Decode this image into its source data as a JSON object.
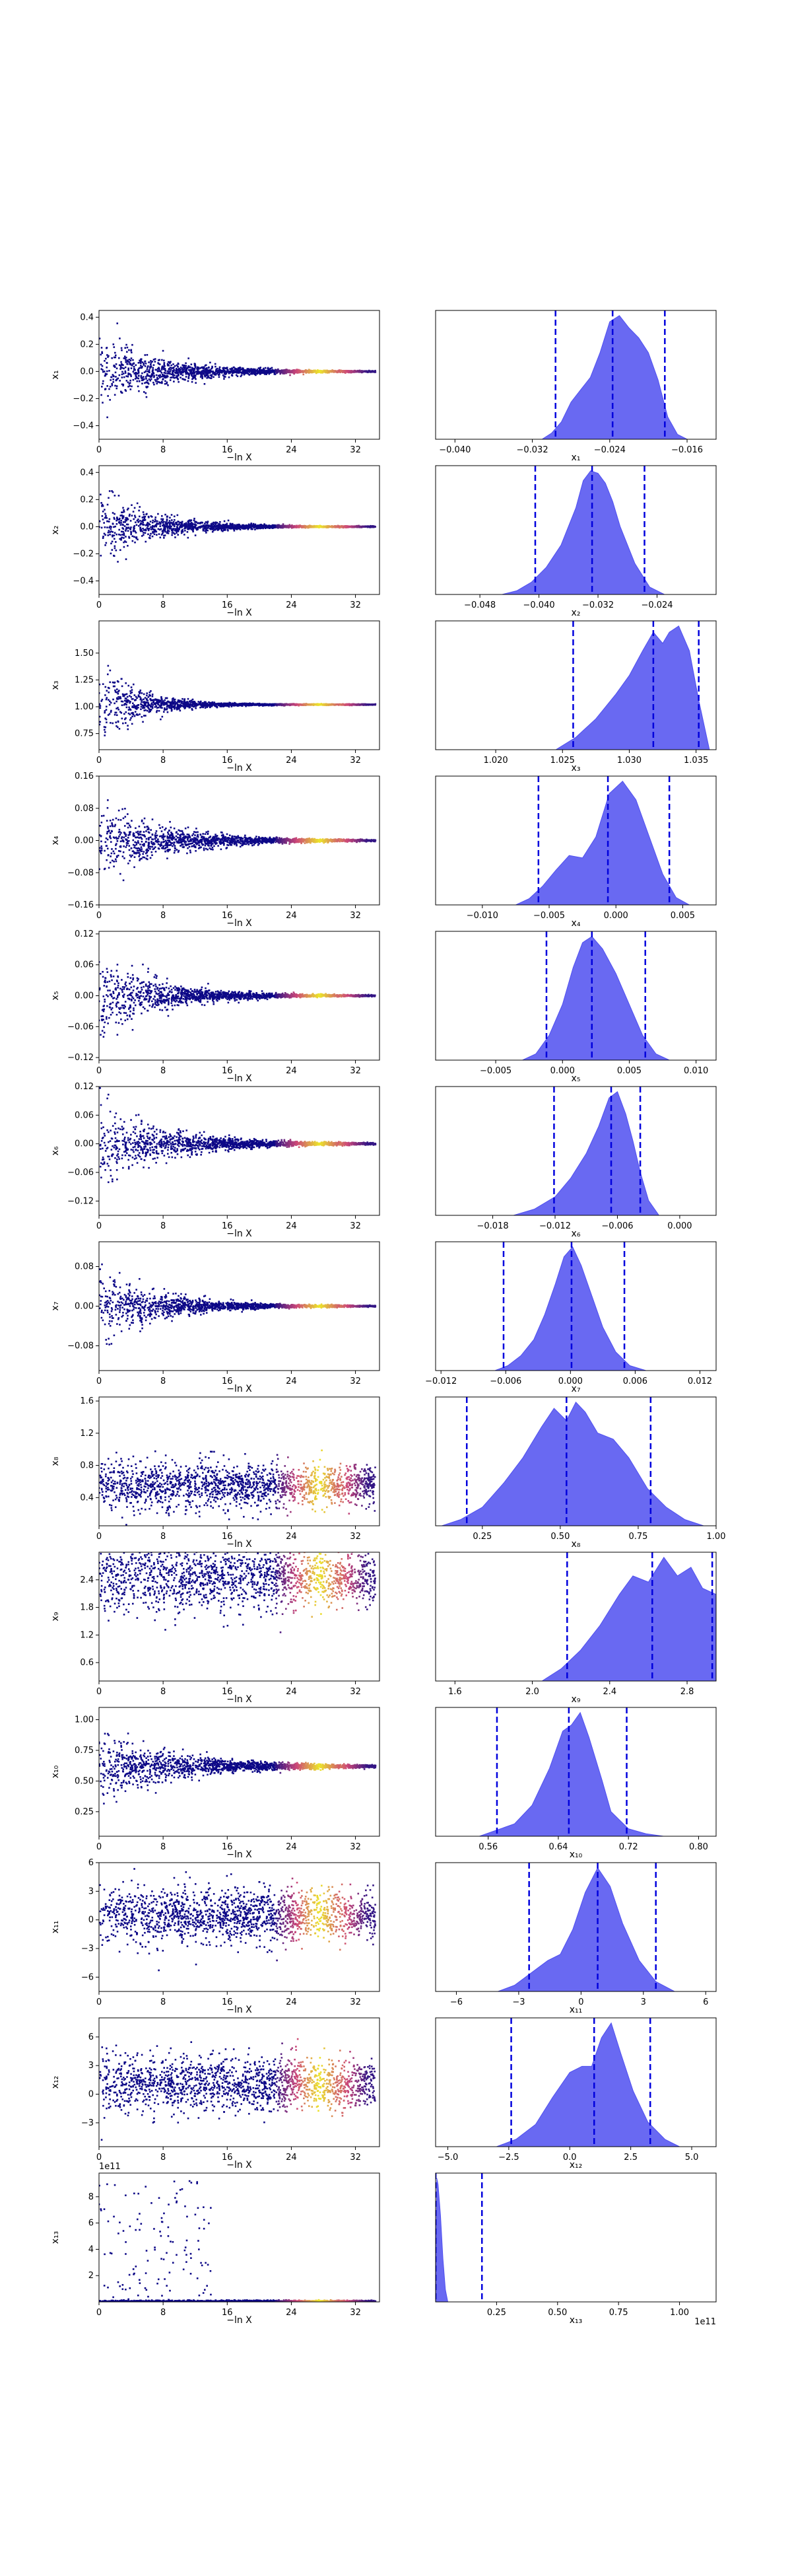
{
  "figure": {
    "colors": {
      "scatter_low": "#0d0887",
      "scatter_mid": "#cc4778",
      "scatter_high": "#f0f921",
      "density_fill": "#4f4ff0",
      "quantile_line": "#0000dd"
    }
  },
  "chart_data": [
    {
      "type": "scatter",
      "row": 1,
      "xlabel": "−ln X",
      "ylabel": "x₁",
      "xlim": [
        0,
        35
      ],
      "ylim": [
        -0.5,
        0.45
      ],
      "xticks": [
        "0",
        "8",
        "16",
        "24",
        "32"
      ],
      "yticks": [
        "−0.4",
        "−0.2",
        "0.0",
        "0.2",
        "0.4"
      ],
      "ytick_values": [
        -0.4,
        -0.2,
        0.0,
        0.2,
        0.4
      ],
      "center": 0.0,
      "spread": 0.4,
      "converge_at": 16,
      "cloud": false,
      "offset": ""
    },
    {
      "type": "area",
      "row": 1,
      "xlabel": "x₁",
      "xlim": [
        -0.042,
        -0.013
      ],
      "xticks": [
        "−0.040",
        "−0.032",
        "−0.024",
        "−0.016"
      ],
      "xtick_values": [
        -0.04,
        -0.032,
        -0.024,
        -0.016
      ],
      "density_x": [
        -0.031,
        -0.03,
        -0.029,
        -0.028,
        -0.027,
        -0.026,
        -0.025,
        -0.024,
        -0.023,
        -0.022,
        -0.021,
        -0.02,
        -0.019,
        -0.018,
        -0.017,
        -0.016
      ],
      "density_y": [
        0.0,
        0.05,
        0.14,
        0.3,
        0.4,
        0.5,
        0.7,
        0.95,
        1.0,
        0.9,
        0.82,
        0.7,
        0.48,
        0.18,
        0.04,
        0.0
      ],
      "quantiles": [
        -0.0296,
        -0.0237,
        -0.0183
      ],
      "offset": ""
    },
    {
      "type": "scatter",
      "row": 2,
      "xlabel": "−ln X",
      "ylabel": "x₂",
      "xlim": [
        0,
        35
      ],
      "ylim": [
        -0.5,
        0.45
      ],
      "xticks": [
        "0",
        "8",
        "16",
        "24",
        "32"
      ],
      "yticks": [
        "−0.4",
        "−0.2",
        "0.0",
        "0.2",
        "0.4"
      ],
      "ytick_values": [
        -0.4,
        -0.2,
        0.0,
        0.2,
        0.4
      ],
      "center": 0.0,
      "spread": 0.4,
      "converge_at": 14,
      "cloud": false,
      "offset": ""
    },
    {
      "type": "area",
      "row": 2,
      "xlabel": "x₂",
      "xlim": [
        -0.054,
        -0.016
      ],
      "xticks": [
        "−0.048",
        "−0.040",
        "−0.032",
        "−0.024"
      ],
      "xtick_values": [
        -0.048,
        -0.04,
        -0.032,
        -0.024
      ],
      "density_x": [
        -0.045,
        -0.043,
        -0.041,
        -0.039,
        -0.037,
        -0.035,
        -0.034,
        -0.033,
        -0.032,
        -0.031,
        -0.03,
        -0.029,
        -0.027,
        -0.025,
        -0.023
      ],
      "density_y": [
        0.0,
        0.03,
        0.1,
        0.22,
        0.4,
        0.7,
        0.92,
        1.0,
        0.98,
        0.9,
        0.75,
        0.55,
        0.25,
        0.06,
        0.0
      ],
      "quantiles": [
        -0.0405,
        -0.0328,
        -0.0257
      ],
      "offset": ""
    },
    {
      "type": "scatter",
      "row": 3,
      "xlabel": "−ln X",
      "ylabel": "x₃",
      "xlim": [
        0,
        35
      ],
      "ylim": [
        0.6,
        1.8
      ],
      "xticks": [
        "0",
        "8",
        "16",
        "24",
        "32"
      ],
      "yticks": [
        "0.75",
        "1.00",
        "1.25",
        "1.50"
      ],
      "ytick_values": [
        0.75,
        1.0,
        1.25,
        1.5
      ],
      "center": 1.02,
      "spread": 0.6,
      "converge_at": 10,
      "cloud": false,
      "offset": ""
    },
    {
      "type": "area",
      "row": 3,
      "xlabel": "x₃",
      "xlim": [
        1.0155,
        1.0365
      ],
      "xticks": [
        "1.020",
        "1.025",
        "1.030",
        "1.035"
      ],
      "xtick_values": [
        1.02,
        1.025,
        1.03,
        1.035
      ],
      "density_x": [
        1.0245,
        1.026,
        1.0275,
        1.029,
        1.03,
        1.031,
        1.0318,
        1.0325,
        1.033,
        1.0337,
        1.0345,
        1.0352,
        1.036
      ],
      "density_y": [
        0.0,
        0.1,
        0.25,
        0.45,
        0.6,
        0.8,
        0.95,
        0.86,
        0.95,
        1.0,
        0.8,
        0.4,
        0.0
      ],
      "quantiles": [
        1.0258,
        1.0318,
        1.0352
      ],
      "offset": ""
    },
    {
      "type": "scatter",
      "row": 4,
      "xlabel": "−ln X",
      "ylabel": "x₄",
      "xlim": [
        0,
        35
      ],
      "ylim": [
        -0.16,
        0.16
      ],
      "xticks": [
        "0",
        "8",
        "16",
        "24",
        "32"
      ],
      "yticks": [
        "−0.16",
        "−0.08",
        "0.00",
        "0.08",
        "0.16"
      ],
      "ytick_values": [
        -0.16,
        -0.08,
        0.0,
        0.08,
        0.16
      ],
      "center": 0.0,
      "spread": 0.13,
      "converge_at": 18,
      "cloud": false,
      "offset": ""
    },
    {
      "type": "area",
      "row": 4,
      "xlabel": "x₄",
      "xlim": [
        -0.0135,
        0.0075
      ],
      "xticks": [
        "−0.010",
        "−0.005",
        "0.000",
        "0.005"
      ],
      "xtick_values": [
        -0.01,
        -0.005,
        0.0,
        0.005
      ],
      "density_x": [
        -0.0075,
        -0.0065,
        -0.0055,
        -0.0045,
        -0.0035,
        -0.0025,
        -0.0015,
        -0.0005,
        0.0005,
        0.0015,
        0.0025,
        0.0035,
        0.0045,
        0.0055
      ],
      "density_y": [
        0.0,
        0.05,
        0.15,
        0.28,
        0.4,
        0.38,
        0.55,
        0.9,
        1.0,
        0.85,
        0.55,
        0.25,
        0.06,
        0.0
      ],
      "quantiles": [
        -0.0058,
        -0.0006,
        0.004
      ],
      "offset": ""
    },
    {
      "type": "scatter",
      "row": 5,
      "xlabel": "−ln X",
      "ylabel": "x₅",
      "xlim": [
        0,
        35
      ],
      "ylim": [
        -0.125,
        0.125
      ],
      "xticks": [
        "0",
        "8",
        "16",
        "24",
        "32"
      ],
      "yticks": [
        "−0.12",
        "−0.06",
        "0.00",
        "0.06",
        "0.12"
      ],
      "ytick_values": [
        -0.12,
        -0.06,
        0.0,
        0.06,
        0.12
      ],
      "center": 0.0,
      "spread": 0.11,
      "converge_at": 16,
      "cloud": false,
      "offset": ""
    },
    {
      "type": "area",
      "row": 5,
      "xlabel": "x₅",
      "xlim": [
        -0.0095,
        0.0115
      ],
      "xticks": [
        "−0.005",
        "0.000",
        "0.005",
        "0.010"
      ],
      "xtick_values": [
        -0.005,
        0.0,
        0.005,
        0.01
      ],
      "density_x": [
        -0.003,
        -0.002,
        -0.001,
        0.0,
        0.0008,
        0.0015,
        0.0022,
        0.003,
        0.004,
        0.005,
        0.006,
        0.007,
        0.008
      ],
      "density_y": [
        0.0,
        0.05,
        0.2,
        0.45,
        0.75,
        0.95,
        1.0,
        0.9,
        0.7,
        0.45,
        0.2,
        0.05,
        0.0
      ],
      "quantiles": [
        -0.0012,
        0.0022,
        0.0062
      ],
      "offset": ""
    },
    {
      "type": "scatter",
      "row": 6,
      "xlabel": "−ln X",
      "ylabel": "x₆",
      "xlim": [
        0,
        35
      ],
      "ylim": [
        -0.15,
        0.12
      ],
      "xticks": [
        "0",
        "8",
        "16",
        "24",
        "32"
      ],
      "yticks": [
        "−0.12",
        "−0.06",
        "0.00",
        "0.06",
        "0.12"
      ],
      "ytick_values": [
        -0.12,
        -0.06,
        0.0,
        0.06,
        0.12
      ],
      "center": 0.0,
      "spread": 0.12,
      "converge_at": 18,
      "cloud": false,
      "offset": ""
    },
    {
      "type": "area",
      "row": 6,
      "xlabel": "x₆",
      "xlim": [
        -0.0235,
        0.0035
      ],
      "xticks": [
        "−0.018",
        "−0.012",
        "−0.006",
        "0.000"
      ],
      "xtick_values": [
        -0.018,
        -0.012,
        -0.006,
        0.0
      ],
      "density_x": [
        -0.016,
        -0.014,
        -0.012,
        -0.0105,
        -0.009,
        -0.0078,
        -0.0068,
        -0.006,
        -0.0052,
        -0.0045,
        -0.0038,
        -0.003,
        -0.002
      ],
      "density_y": [
        0.0,
        0.05,
        0.15,
        0.3,
        0.5,
        0.72,
        0.95,
        1.0,
        0.82,
        0.6,
        0.35,
        0.12,
        0.0
      ],
      "quantiles": [
        -0.0121,
        -0.0066,
        -0.0038
      ],
      "offset": ""
    },
    {
      "type": "scatter",
      "row": 7,
      "xlabel": "−ln X",
      "ylabel": "x₇",
      "xlim": [
        0,
        35
      ],
      "ylim": [
        -0.13,
        0.13
      ],
      "xticks": [
        "0",
        "8",
        "16",
        "24",
        "32"
      ],
      "yticks": [
        "−0.08",
        "0.00",
        "0.08"
      ],
      "ytick_values": [
        -0.08,
        0.0,
        0.08
      ],
      "center": 0.0,
      "spread": 0.11,
      "converge_at": 16,
      "cloud": false,
      "offset": ""
    },
    {
      "type": "area",
      "row": 7,
      "xlabel": "x₇",
      "xlim": [
        -0.0125,
        0.0135
      ],
      "xticks": [
        "−0.012",
        "−0.006",
        "0.000",
        "0.006",
        "0.012"
      ],
      "xtick_values": [
        -0.012,
        -0.006,
        0.0,
        0.006,
        0.012
      ],
      "density_x": [
        -0.007,
        -0.0058,
        -0.0046,
        -0.0034,
        -0.0024,
        -0.0014,
        -0.0006,
        0.0002,
        0.001,
        0.002,
        0.003,
        0.0042,
        0.0055,
        0.007
      ],
      "density_y": [
        0.0,
        0.04,
        0.12,
        0.25,
        0.45,
        0.7,
        0.92,
        1.0,
        0.85,
        0.6,
        0.35,
        0.15,
        0.04,
        0.0
      ],
      "quantiles": [
        -0.0062,
        0.0001,
        0.005
      ],
      "offset": ""
    },
    {
      "type": "scatter",
      "row": 8,
      "xlabel": "−ln X",
      "ylabel": "x₈",
      "xlim": [
        0,
        35
      ],
      "ylim": [
        0.05,
        1.65
      ],
      "xticks": [
        "0",
        "8",
        "16",
        "24",
        "32"
      ],
      "yticks": [
        "0.4",
        "0.8",
        "1.2",
        "1.6"
      ],
      "ytick_values": [
        0.4,
        0.8,
        1.2,
        1.6
      ],
      "center": 0.55,
      "spread": 0.5,
      "converge_at": 0,
      "cloud": true,
      "offset": ""
    },
    {
      "type": "area",
      "row": 8,
      "xlabel": "x₈",
      "xlim": [
        0.1,
        1.0
      ],
      "xticks": [
        "0.25",
        "0.50",
        "0.75",
        "1.00"
      ],
      "xtick_values": [
        0.25,
        0.5,
        0.75,
        1.0
      ],
      "density_x": [
        0.12,
        0.18,
        0.25,
        0.32,
        0.38,
        0.44,
        0.48,
        0.52,
        0.55,
        0.58,
        0.62,
        0.67,
        0.72,
        0.78,
        0.84,
        0.9,
        0.96
      ],
      "density_y": [
        0.0,
        0.05,
        0.15,
        0.35,
        0.55,
        0.8,
        0.95,
        0.85,
        1.0,
        0.92,
        0.75,
        0.7,
        0.55,
        0.3,
        0.15,
        0.05,
        0.0
      ],
      "quantiles": [
        0.2,
        0.52,
        0.79
      ],
      "offset": ""
    },
    {
      "type": "scatter",
      "row": 9,
      "xlabel": "−ln X",
      "ylabel": "x₉",
      "xlim": [
        0,
        35
      ],
      "ylim": [
        0.2,
        3.0
      ],
      "xticks": [
        "0",
        "8",
        "16",
        "24",
        "32"
      ],
      "yticks": [
        "0.6",
        "1.2",
        "1.8",
        "2.4"
      ],
      "ytick_values": [
        0.6,
        1.2,
        1.8,
        2.4
      ],
      "center": 2.45,
      "spread": 1.3,
      "converge_at": 0,
      "cloud": true,
      "offset": ""
    },
    {
      "type": "area",
      "row": 9,
      "xlabel": "x₉",
      "xlim": [
        1.5,
        2.95
      ],
      "xticks": [
        "1.6",
        "2.0",
        "2.4",
        "2.8"
      ],
      "xtick_values": [
        1.6,
        2.0,
        2.4,
        2.8
      ],
      "density_x": [
        2.05,
        2.15,
        2.25,
        2.35,
        2.45,
        2.52,
        2.6,
        2.68,
        2.75,
        2.82,
        2.88,
        2.95
      ],
      "density_y": [
        0.0,
        0.1,
        0.25,
        0.45,
        0.7,
        0.85,
        0.8,
        1.0,
        0.85,
        0.92,
        0.75,
        0.7
      ],
      "quantiles": [
        2.18,
        2.62,
        2.93
      ],
      "offset": ""
    },
    {
      "type": "scatter",
      "row": 10,
      "xlabel": "−ln X",
      "ylabel": "x₁₀",
      "xlim": [
        0,
        35
      ],
      "ylim": [
        0.05,
        1.1
      ],
      "xticks": [
        "0",
        "8",
        "16",
        "24",
        "32"
      ],
      "yticks": [
        "0.25",
        "0.50",
        "0.75",
        "1.00"
      ],
      "ytick_values": [
        0.25,
        0.5,
        0.75,
        1.0
      ],
      "center": 0.62,
      "spread": 0.4,
      "converge_at": 22,
      "cloud": false,
      "offset": ""
    },
    {
      "type": "area",
      "row": 10,
      "xlabel": "x₁₀",
      "xlim": [
        0.5,
        0.82
      ],
      "xticks": [
        "0.56",
        "0.64",
        "0.72",
        "0.80"
      ],
      "xtick_values": [
        0.56,
        0.64,
        0.72,
        0.8
      ],
      "density_x": [
        0.55,
        0.57,
        0.59,
        0.61,
        0.63,
        0.645,
        0.655,
        0.665,
        0.675,
        0.69,
        0.7,
        0.72,
        0.74,
        0.76
      ],
      "density_y": [
        0.0,
        0.05,
        0.1,
        0.25,
        0.55,
        0.85,
        0.9,
        1.0,
        0.8,
        0.45,
        0.2,
        0.06,
        0.02,
        0.0
      ],
      "quantiles": [
        0.57,
        0.652,
        0.718
      ],
      "offset": ""
    },
    {
      "type": "scatter",
      "row": 11,
      "xlabel": "−ln X",
      "ylabel": "x₁₁",
      "xlim": [
        0,
        35
      ],
      "ylim": [
        -7.5,
        6
      ],
      "xticks": [
        "0",
        "8",
        "16",
        "24",
        "32"
      ],
      "yticks": [
        "−6",
        "−3",
        "0",
        "3",
        "6"
      ],
      "ytick_values": [
        -6,
        -3,
        0,
        3,
        6
      ],
      "center": 0.5,
      "spread": 5.0,
      "converge_at": 0,
      "cloud": true,
      "offset": ""
    },
    {
      "type": "area",
      "row": 11,
      "xlabel": "x₁₁",
      "xlim": [
        -7,
        6.5
      ],
      "xticks": [
        "−6",
        "−3",
        "0",
        "3",
        "6"
      ],
      "xtick_values": [
        -6,
        -3,
        0,
        3,
        6
      ],
      "density_x": [
        -4.0,
        -3.2,
        -2.4,
        -1.6,
        -1.0,
        -0.4,
        0.2,
        0.8,
        1.4,
        2.0,
        2.8,
        3.6,
        4.5
      ],
      "density_y": [
        0.0,
        0.05,
        0.15,
        0.25,
        0.3,
        0.5,
        0.8,
        1.0,
        0.85,
        0.55,
        0.25,
        0.08,
        0.0
      ],
      "quantiles": [
        -2.5,
        0.8,
        3.6
      ],
      "offset": ""
    },
    {
      "type": "scatter",
      "row": 12,
      "xlabel": "−ln X",
      "ylabel": "x₁₂",
      "xlim": [
        0,
        35
      ],
      "ylim": [
        -5.5,
        8
      ],
      "xticks": [
        "0",
        "8",
        "16",
        "24",
        "32"
      ],
      "yticks": [
        "−3",
        "0",
        "3",
        "6"
      ],
      "ytick_values": [
        -3,
        0,
        3,
        6
      ],
      "center": 1.0,
      "spread": 5.0,
      "converge_at": 0,
      "cloud": true,
      "offset": ""
    },
    {
      "type": "area",
      "row": 12,
      "xlabel": "x₁₂",
      "xlim": [
        -5.5,
        6
      ],
      "xticks": [
        "−5.0",
        "−2.5",
        "0.0",
        "2.5",
        "5.0"
      ],
      "xtick_values": [
        -5.0,
        -2.5,
        0.0,
        2.5,
        5.0
      ],
      "density_x": [
        -3.0,
        -2.2,
        -1.4,
        -0.7,
        0.0,
        0.5,
        0.9,
        1.3,
        1.7,
        2.1,
        2.6,
        3.2,
        3.9,
        4.5
      ],
      "density_y": [
        0.0,
        0.06,
        0.18,
        0.4,
        0.6,
        0.65,
        0.65,
        0.88,
        1.0,
        0.75,
        0.45,
        0.2,
        0.06,
        0.0
      ],
      "quantiles": [
        -2.4,
        1.0,
        3.3
      ],
      "offset": ""
    },
    {
      "type": "scatter",
      "row": 13,
      "xlabel": "−ln X",
      "ylabel": "x₁₃",
      "xlim": [
        0,
        35
      ],
      "ylim": [
        0,
        9.8
      ],
      "xticks": [
        "0",
        "8",
        "16",
        "24",
        "32"
      ],
      "yticks": [
        "2",
        "4",
        "6",
        "8"
      ],
      "ytick_values": [
        2,
        4,
        6,
        8
      ],
      "center": 0.0,
      "spread": 9.0,
      "converge_at": 0,
      "cloud": false,
      "spike": true,
      "offset": "1e11"
    },
    {
      "type": "area",
      "row": 13,
      "xlabel": "x₁₃",
      "xlim": [
        0,
        1.15
      ],
      "xticks": [
        "0.25",
        "0.50",
        "0.75",
        "1.00"
      ],
      "xtick_values": [
        0.25,
        0.5,
        0.75,
        1.0
      ],
      "density_x": [
        0.0,
        0.005,
        0.01,
        0.02,
        0.03,
        0.04,
        0.05
      ],
      "density_y": [
        0.0,
        1.0,
        0.95,
        0.7,
        0.35,
        0.1,
        0.0
      ],
      "quantiles": [
        0.0,
        0.0,
        0.19
      ],
      "offset": "1e11"
    }
  ]
}
